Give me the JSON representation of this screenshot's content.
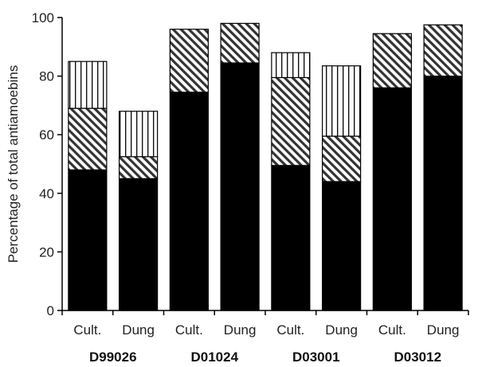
{
  "chart_data": {
    "type": "bar",
    "stacked": true,
    "ylabel": "Percentage of total antiamoebins",
    "xlabel": "",
    "ylim": [
      0,
      100
    ],
    "yticks": [
      0,
      20,
      40,
      60,
      80,
      100
    ],
    "categories": [
      "Cult.",
      "Dung",
      "Cult.",
      "Dung",
      "Cult.",
      "Dung",
      "Cult.",
      "Dung"
    ],
    "groups": [
      {
        "label": "D99026",
        "span": [
          0,
          1
        ]
      },
      {
        "label": "D01024",
        "span": [
          2,
          3
        ]
      },
      {
        "label": "D03001",
        "span": [
          4,
          5
        ]
      },
      {
        "label": "D03012",
        "span": [
          6,
          7
        ]
      }
    ],
    "series": [
      {
        "pattern": "solid-black",
        "values": [
          48,
          45,
          74.5,
          84.5,
          49.5,
          44,
          76,
          80
        ]
      },
      {
        "pattern": "diagonal-hatch",
        "values": [
          21,
          7.5,
          21.5,
          13.5,
          30,
          15.5,
          18.5,
          17.5
        ]
      },
      {
        "pattern": "vertical-lines",
        "values": [
          16,
          15.5,
          0,
          0,
          8.5,
          24,
          0,
          0
        ]
      }
    ],
    "grid": false,
    "legend": "none"
  }
}
